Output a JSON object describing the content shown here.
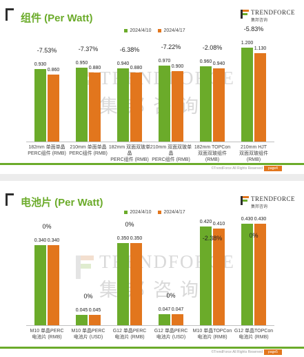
{
  "colors": {
    "green": "#6bab2a",
    "orange": "#e2761d",
    "dark": "#2d2d2d"
  },
  "logo": {
    "word": "TRENDFORCE",
    "sub": "集邦咨询"
  },
  "watermark": {
    "en": "TRENDFORCE",
    "cn": "集邦咨询"
  },
  "copyright": "©TrendForce All Rights Reserved",
  "chart_data": [
    {
      "type": "bar",
      "title": "组件 (Per Watt)",
      "page": "page4",
      "ylim": [
        0,
        1.3
      ],
      "categories": [
        [
          "182mm 单面单晶",
          "PERC组件 (RMB)"
        ],
        [
          "210mm 单面单晶",
          "PERC组件 (RMB)"
        ],
        [
          "182mm 双面双玻单晶",
          "PERC组件 (RMB)"
        ],
        [
          "210mm 双面双玻单晶",
          "PERC组件 (RMB)"
        ],
        [
          "182mm TOPCon",
          "双面双玻组件 (RMB)"
        ],
        [
          "210mm HJT",
          "双面双玻组件 (RMB)"
        ]
      ],
      "series": [
        {
          "name": "2024/4/10",
          "color": "#6bab2a",
          "values": [
            0.93,
            0.95,
            0.94,
            0.97,
            0.96,
            1.2
          ],
          "labels": [
            "0.930",
            "0.950",
            "0.940",
            "0.970",
            "0.960",
            "1.200"
          ]
        },
        {
          "name": "2024/4/17",
          "color": "#e2761d",
          "values": [
            0.86,
            0.88,
            0.88,
            0.9,
            0.94,
            1.13
          ],
          "labels": [
            "0.860",
            "0.880",
            "0.880",
            "0.900",
            "0.940",
            "1.130"
          ]
        }
      ],
      "changes": [
        "-7.53%",
        "-7.37%",
        "-6.38%",
        "-7.22%",
        "-2.08%",
        "-5.83%"
      ]
    },
    {
      "type": "bar",
      "title": "电池片 (Per Watt)",
      "page": "page5",
      "ylim": [
        0,
        0.46
      ],
      "categories": [
        [
          "M10 单晶PERC",
          "电池片 (RMB)"
        ],
        [
          "M10 单晶PERC",
          "电池片 (USD)"
        ],
        [
          "G12 单晶PERC",
          "电池片 (RMB)"
        ],
        [
          "G12 单晶PERC",
          "电池片 (USD)"
        ],
        [
          "M10 单晶TOPCon",
          "电池片 (RMB)"
        ],
        [
          "G12 单晶TOPCon",
          "电池片 (RMB)"
        ]
      ],
      "series": [
        {
          "name": "2024/4/10",
          "color": "#6bab2a",
          "values": [
            0.34,
            0.045,
            0.35,
            0.047,
            0.42,
            0.43
          ],
          "labels": [
            "0.340",
            "0.045",
            "0.350",
            "0.047",
            "0.420",
            "0.430"
          ]
        },
        {
          "name": "2024/4/17",
          "color": "#e2761d",
          "values": [
            0.34,
            0.045,
            0.35,
            0.047,
            0.41,
            0.43
          ],
          "labels": [
            "0.340",
            "0.045",
            "0.350",
            "0.047",
            "0.410",
            "0.430"
          ]
        }
      ],
      "changes": [
        "0%",
        "0%",
        "0%",
        "0%",
        "-2.38%",
        "0%"
      ]
    }
  ]
}
